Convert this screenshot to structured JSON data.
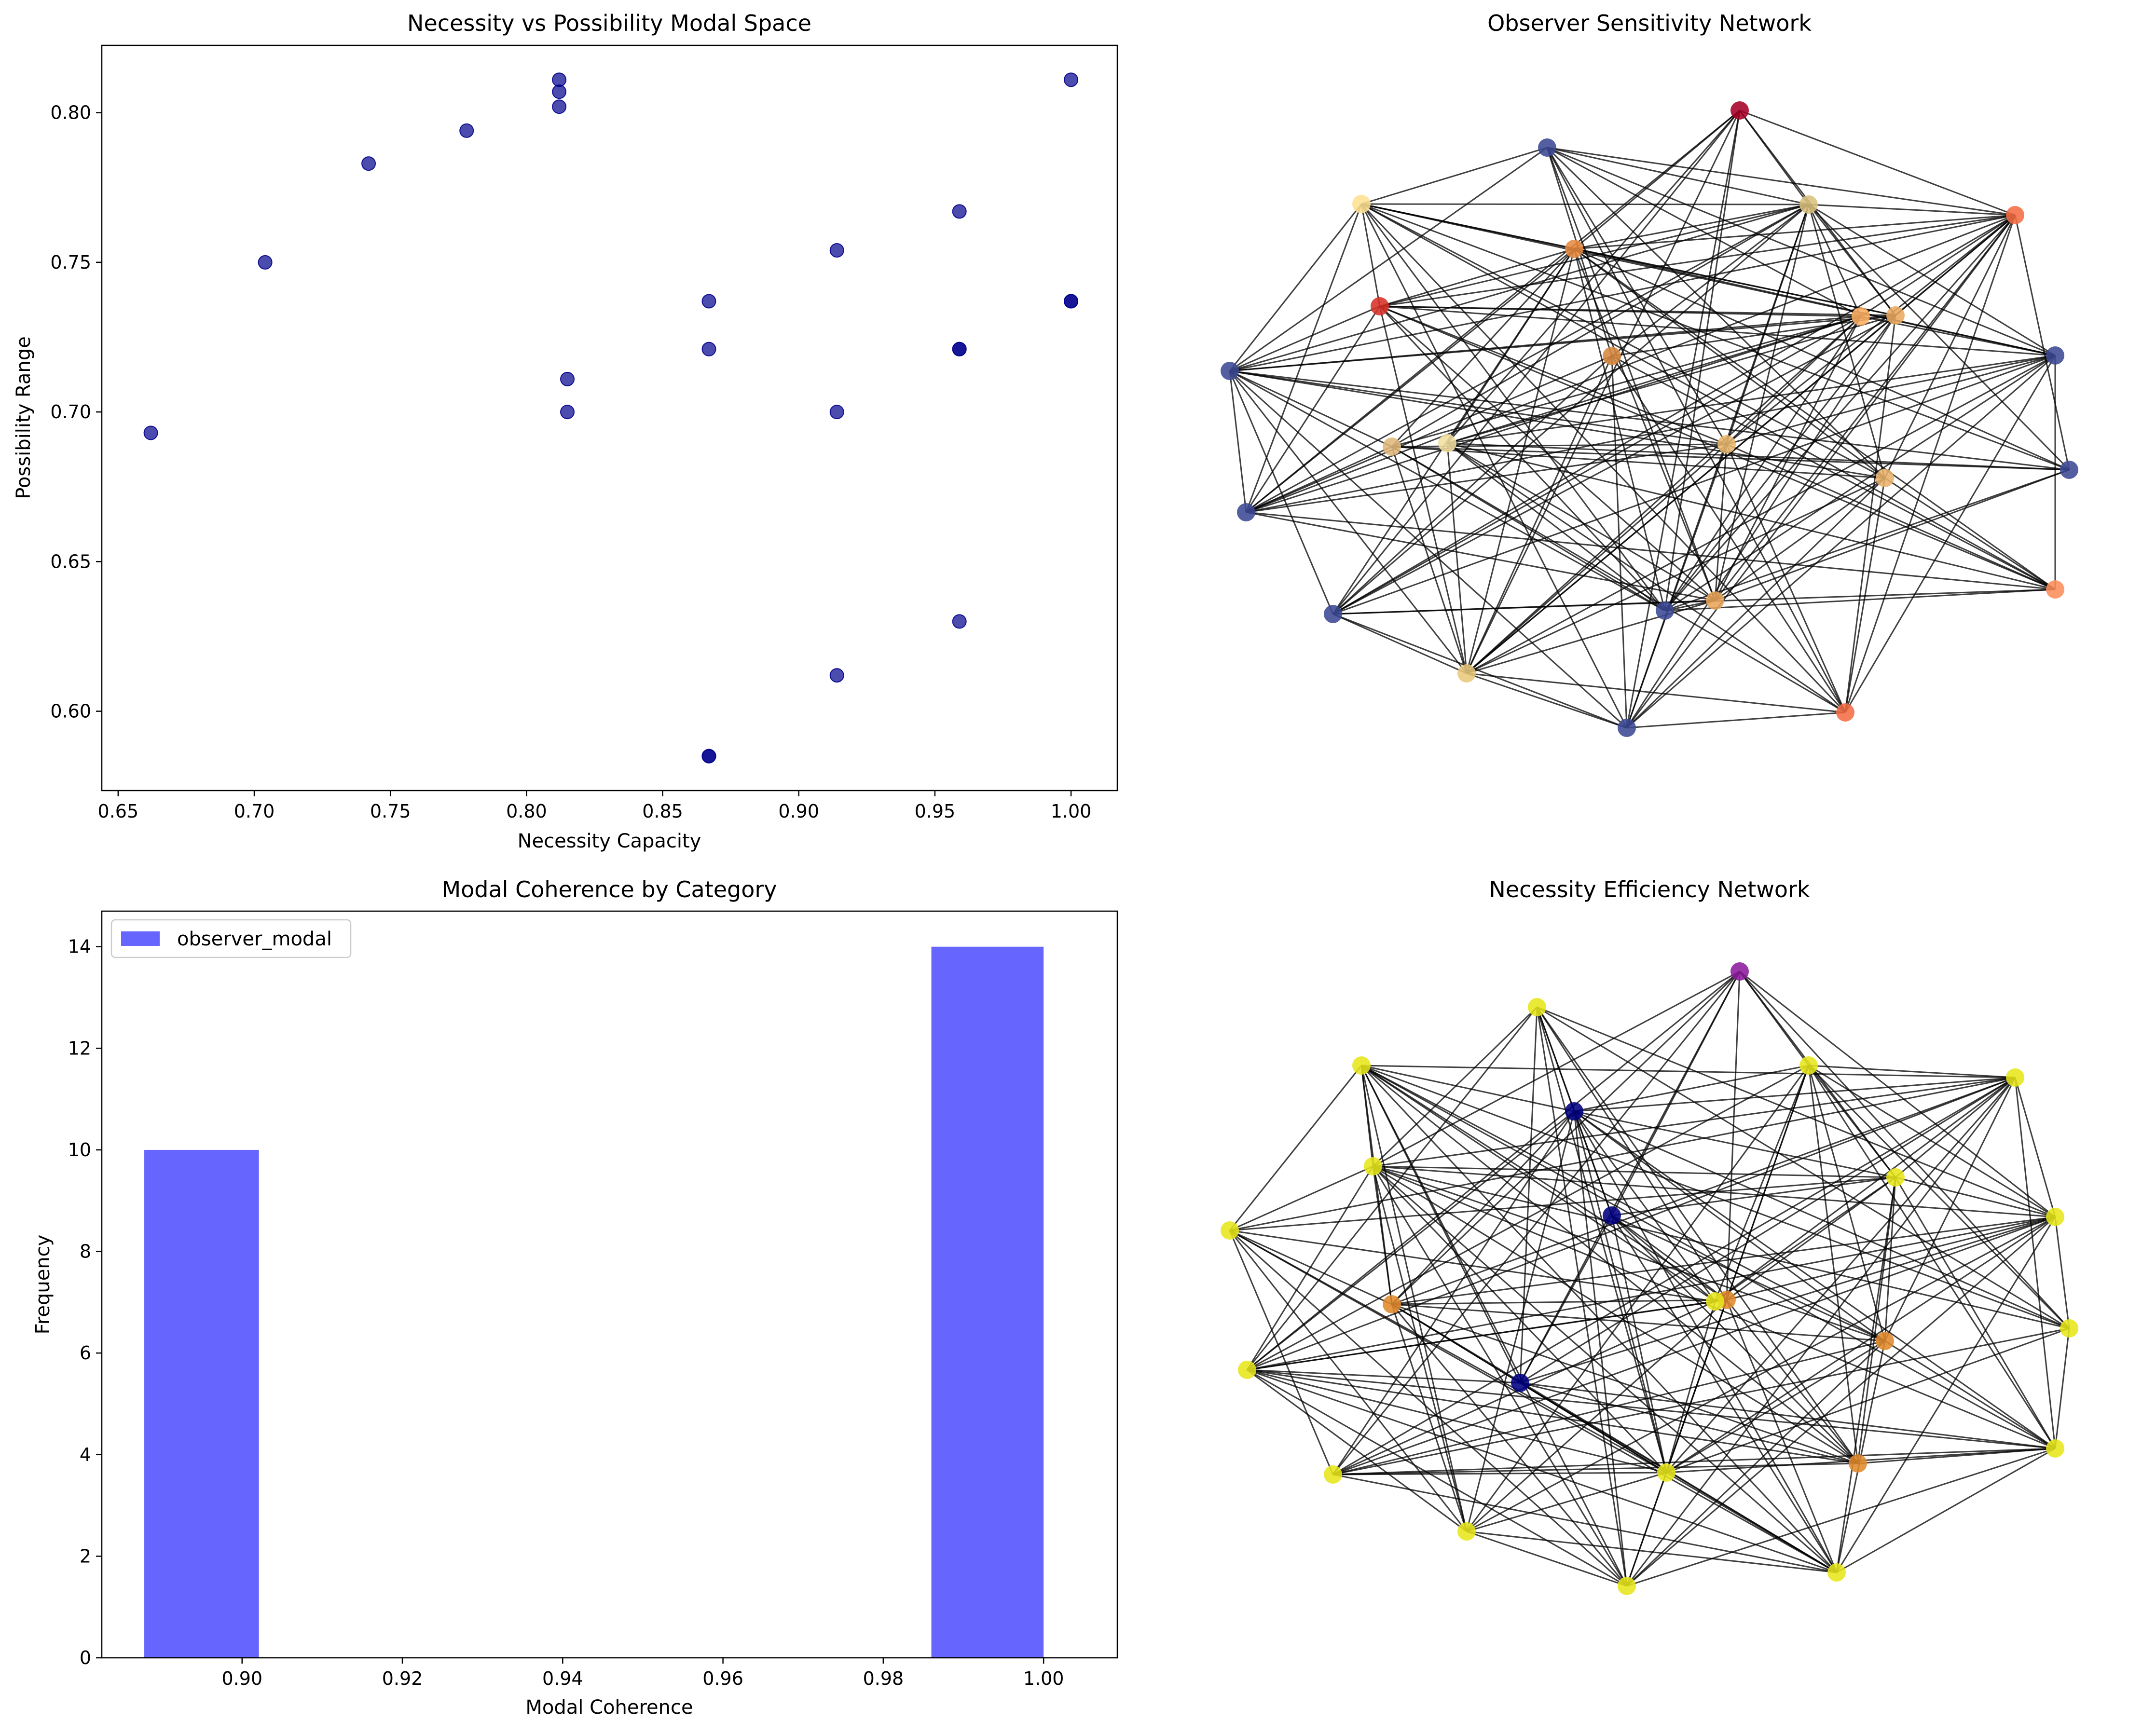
{
  "chart_data": [
    {
      "type": "scatter",
      "title": "Necessity vs Possibility Modal Space",
      "xlabel": "Necessity Capacity",
      "ylabel": "Possibility Range",
      "xlim": [
        0.644,
        1.017
      ],
      "ylim": [
        0.5735,
        0.8225
      ],
      "xticks": [
        0.65,
        0.7,
        0.75,
        0.8,
        0.85,
        0.9,
        0.95,
        1.0
      ],
      "xtick_labels": [
        "0.65",
        "0.70",
        "0.75",
        "0.80",
        "0.85",
        "0.90",
        "0.95",
        "1.00"
      ],
      "yticks": [
        0.6,
        0.65,
        0.7,
        0.75,
        0.8
      ],
      "ytick_labels": [
        "0.60",
        "0.65",
        "0.70",
        "0.75",
        "0.80"
      ],
      "color": "#00008b",
      "points": [
        {
          "x": 0.662,
          "y": 0.693
        },
        {
          "x": 0.704,
          "y": 0.75
        },
        {
          "x": 0.742,
          "y": 0.783
        },
        {
          "x": 0.778,
          "y": 0.794
        },
        {
          "x": 0.812,
          "y": 0.811
        },
        {
          "x": 0.812,
          "y": 0.807
        },
        {
          "x": 0.812,
          "y": 0.802
        },
        {
          "x": 0.815,
          "y": 0.711
        },
        {
          "x": 0.815,
          "y": 0.7
        },
        {
          "x": 0.867,
          "y": 0.737
        },
        {
          "x": 0.867,
          "y": 0.721
        },
        {
          "x": 0.867,
          "y": 0.585
        },
        {
          "x": 0.867,
          "y": 0.585
        },
        {
          "x": 0.914,
          "y": 0.754
        },
        {
          "x": 0.914,
          "y": 0.7
        },
        {
          "x": 0.914,
          "y": 0.612
        },
        {
          "x": 0.959,
          "y": 0.767
        },
        {
          "x": 0.959,
          "y": 0.721
        },
        {
          "x": 0.959,
          "y": 0.721
        },
        {
          "x": 0.959,
          "y": 0.63
        },
        {
          "x": 1.0,
          "y": 0.811
        },
        {
          "x": 1.0,
          "y": 0.737
        },
        {
          "x": 1.0,
          "y": 0.737
        }
      ]
    },
    {
      "type": "network",
      "title": "Observer Sensitivity Network",
      "edge_color": "#000000",
      "nodes": [
        {
          "color": "#a50026"
        },
        {
          "color": "#d73027"
        },
        {
          "color": "#f46d43"
        },
        {
          "color": "#fdae61"
        },
        {
          "color": "#e0b87a"
        },
        {
          "color": "#3b4994"
        },
        {
          "color": "#fee090"
        },
        {
          "color": "#e8893d"
        },
        {
          "color": "#d6883f"
        },
        {
          "color": "#e8a55a"
        },
        {
          "color": "#e9b86e"
        },
        {
          "color": "#3b4994"
        },
        {
          "color": "#3b4994"
        },
        {
          "color": "#fc8d59"
        },
        {
          "color": "#3b4994"
        },
        {
          "color": "#3b4994"
        },
        {
          "color": "#3b4994"
        },
        {
          "color": "#e9c87a"
        },
        {
          "color": "#3b4994"
        },
        {
          "color": "#f46d43"
        },
        {
          "color": "#e9b06a"
        },
        {
          "color": "#d9c07e"
        },
        {
          "color": "#e9a860"
        },
        {
          "color": "#3b4994"
        },
        {
          "color": "#f2e0a0"
        }
      ]
    },
    {
      "type": "bar",
      "title": "Modal Coherence by Category",
      "xlabel": "Modal Coherence",
      "ylabel": "Frequency",
      "xlim": [
        0.8825,
        1.0092
      ],
      "ylim": [
        0,
        14.7
      ],
      "xticks": [
        0.9,
        0.92,
        0.94,
        0.96,
        0.98,
        1.0
      ],
      "xtick_labels": [
        "0.90",
        "0.92",
        "0.94",
        "0.96",
        "0.98",
        "1.00"
      ],
      "yticks": [
        0,
        2,
        4,
        6,
        8,
        10,
        12,
        14
      ],
      "ytick_labels": [
        "0",
        "2",
        "4",
        "6",
        "8",
        "10",
        "12",
        "14"
      ],
      "legend_position": "upper-left",
      "color": "#6666ff",
      "series": [
        {
          "name": "observer_modal"
        }
      ],
      "bars": [
        {
          "x0": 0.8878,
          "x1": 0.9021,
          "value": 10
        },
        {
          "x0": 0.986,
          "x1": 1.0,
          "value": 14
        }
      ]
    },
    {
      "type": "network",
      "title": "Necessity Efficiency Network",
      "edge_color": "#000000",
      "nodes": [
        {
          "color": "#8b1a9c"
        },
        {
          "color": "#e6e61a"
        },
        {
          "color": "#e6e61a"
        },
        {
          "color": "#e6e61a"
        },
        {
          "color": "#e6e61a"
        },
        {
          "color": "#e6e61a"
        },
        {
          "color": "#e6e61a"
        },
        {
          "color": "#000080"
        },
        {
          "color": "#e6e61a"
        },
        {
          "color": "#e6e61a"
        },
        {
          "color": "#e08a2c"
        },
        {
          "color": "#000080"
        },
        {
          "color": "#e6e61a"
        },
        {
          "color": "#e08a2c"
        },
        {
          "color": "#e6e61a"
        },
        {
          "color": "#e08a2c"
        },
        {
          "color": "#e6e61a"
        },
        {
          "color": "#000080"
        },
        {
          "color": "#e6e61a"
        },
        {
          "color": "#e08a2c"
        },
        {
          "color": "#e6e61a"
        },
        {
          "color": "#e6e61a"
        },
        {
          "color": "#e6e61a"
        },
        {
          "color": "#e6e61a"
        },
        {
          "color": "#e6e61a"
        }
      ]
    }
  ]
}
